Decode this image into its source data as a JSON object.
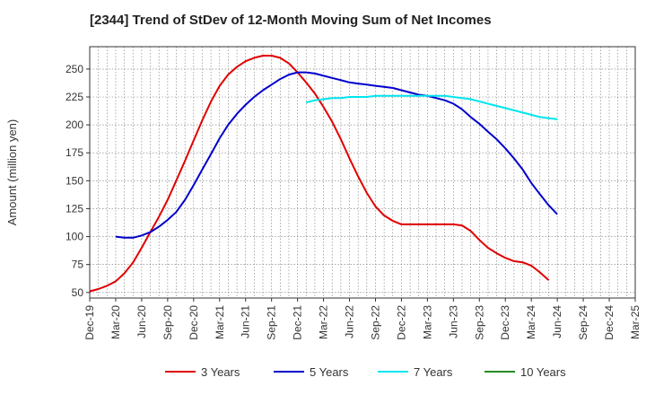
{
  "chart_data": {
    "type": "line",
    "title": "[2344]  Trend of StDev of 12-Month Moving Sum of Net Incomes",
    "ylabel": "Amount (million yen)",
    "xlabel": "",
    "ylim": [
      45,
      270
    ],
    "yticks": [
      50,
      75,
      100,
      125,
      150,
      175,
      200,
      225,
      250
    ],
    "x_tick_labels": [
      "Dec-19",
      "Mar-20",
      "Jun-20",
      "Sep-20",
      "Dec-20",
      "Mar-21",
      "Jun-21",
      "Sep-21",
      "Dec-21",
      "Mar-22",
      "Jun-22",
      "Sep-22",
      "Dec-22",
      "Mar-23",
      "Jun-23",
      "Sep-23",
      "Dec-23",
      "Mar-24",
      "Jun-24",
      "Sep-24",
      "Dec-24",
      "Mar-25"
    ],
    "grid": true,
    "legend_position": "bottom",
    "series": [
      {
        "name": "3 Years",
        "color": "#e00000",
        "values": [
          51,
          53,
          56,
          60,
          68,
          79,
          93,
          108,
          123,
          140,
          158,
          177,
          196,
          214,
          230,
          242,
          250,
          256,
          260,
          262,
          262,
          260,
          255,
          247,
          238,
          227,
          215,
          201,
          185,
          169,
          152,
          136,
          124,
          116,
          112,
          111,
          111,
          111,
          111,
          111,
          111,
          110,
          106,
          99,
          92,
          87,
          83,
          79,
          77,
          75,
          70,
          61
        ]
      },
      {
        "name": "5 Years",
        "color": "#0000cc",
        "values": [
          null,
          null,
          null,
          null,
          null,
          null,
          null,
          null,
          null,
          null,
          null,
          null,
          null,
          null,
          null,
          null,
          null,
          null,
          null,
          null,
          null,
          null,
          null,
          null,
          null,
          null,
          null,
          null,
          null,
          null,
          null,
          null,
          null,
          null,
          null,
          null,
          null,
          null,
          null,
          null,
          null,
          null,
          null,
          null,
          null,
          null,
          null,
          null,
          null,
          null,
          null,
          null
        ]
      },
      {
        "name": "7 Years",
        "color": "#00e5ee",
        "values": [
          null,
          null,
          null,
          null,
          null,
          null,
          null,
          null,
          null,
          null,
          null,
          null,
          null,
          null,
          null,
          null,
          null,
          null,
          null,
          null,
          null,
          null,
          null,
          null,
          null,
          null,
          null,
          null,
          null,
          null,
          null,
          null,
          null,
          null,
          null,
          null,
          null,
          null,
          null,
          null,
          null,
          null,
          null,
          null,
          null,
          null,
          null,
          null,
          null,
          null,
          null,
          null
        ]
      },
      {
        "name": "10 Years",
        "color": "#228b22",
        "values": []
      }
    ]
  }
}
